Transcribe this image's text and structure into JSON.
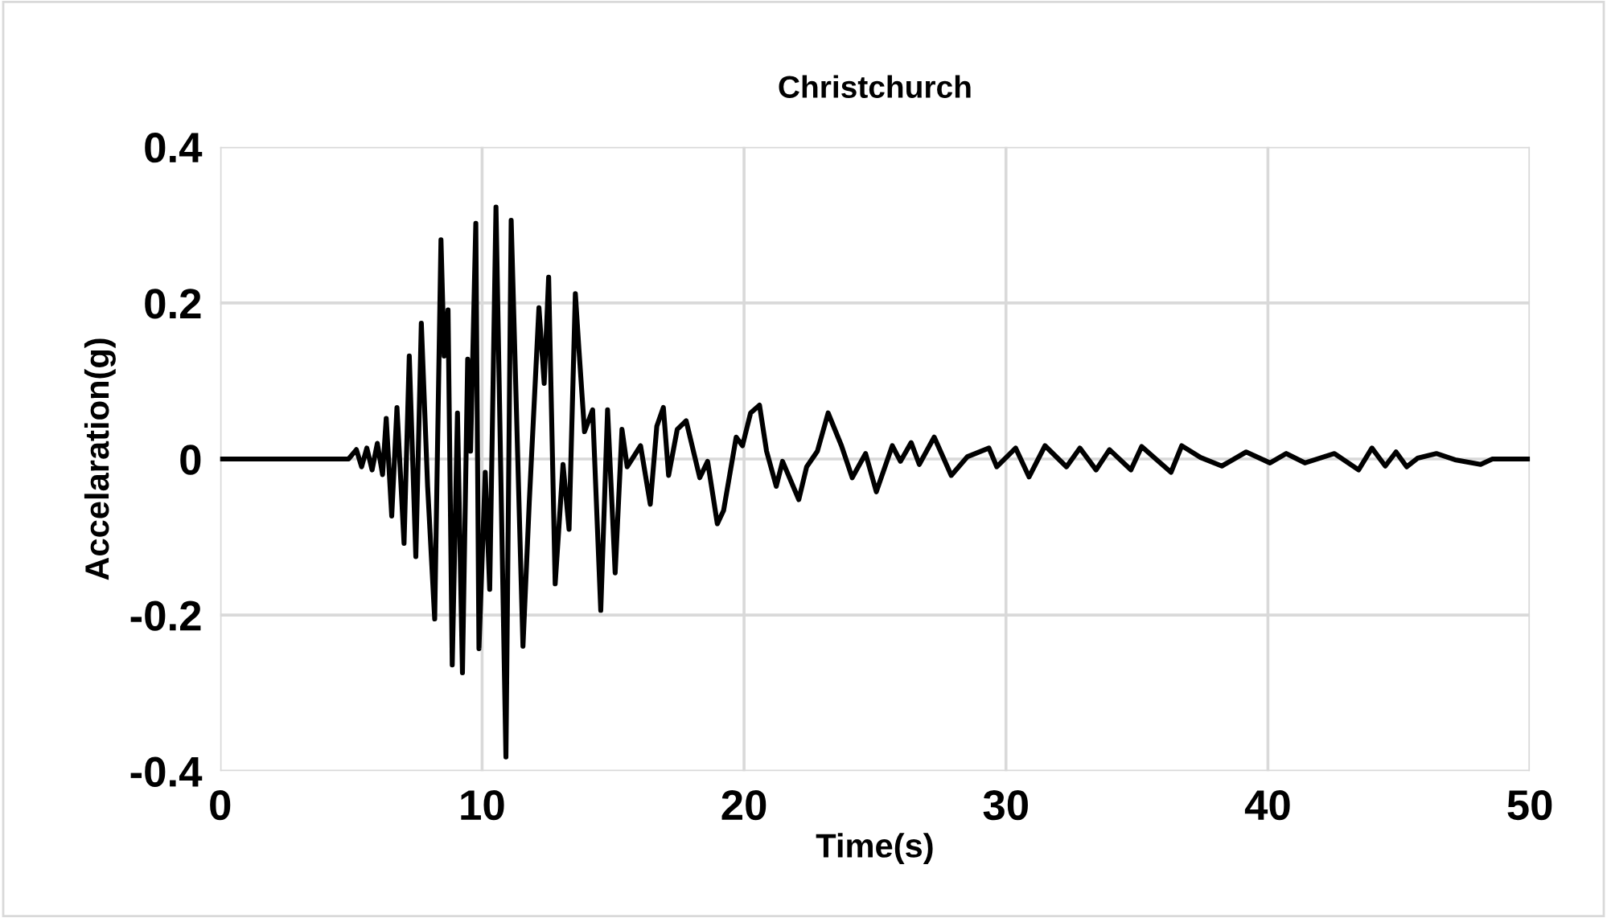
{
  "chart_data": {
    "type": "line",
    "title": "Christchurch",
    "xlabel": "Time(s)",
    "ylabel": "Accelaration(g)",
    "xlim": [
      0,
      50
    ],
    "ylim": [
      -0.4,
      0.4
    ],
    "xticks": [
      0,
      10,
      20,
      30,
      40,
      50
    ],
    "yticks": [
      -0.4,
      -0.2,
      0,
      0.2,
      0.4
    ],
    "grid": true,
    "marker": "none",
    "line_style": "solid",
    "series": [
      {
        "color": "#000000",
        "x": [
          0,
          4.9,
          5.2,
          5.4,
          5.6,
          5.8,
          6.0,
          6.2,
          6.34,
          6.55,
          6.75,
          7.02,
          7.22,
          7.47,
          7.68,
          7.92,
          8.19,
          8.43,
          8.55,
          8.7,
          8.86,
          9.06,
          9.25,
          9.45,
          9.56,
          9.76,
          9.88,
          10.12,
          10.29,
          10.53,
          10.91,
          11.11,
          11.56,
          11.8,
          12.17,
          12.37,
          12.54,
          12.79,
          13.09,
          13.32,
          13.56,
          13.7,
          13.91,
          14.22,
          14.53,
          14.79,
          15.08,
          15.34,
          15.54,
          16.05,
          16.42,
          16.67,
          16.92,
          17.12,
          17.45,
          17.79,
          18.31,
          18.61,
          18.98,
          19.22,
          19.7,
          19.94,
          20.25,
          20.59,
          20.86,
          21.23,
          21.47,
          22.09,
          22.39,
          22.8,
          23.21,
          23.72,
          24.13,
          24.64,
          25.05,
          25.66,
          25.97,
          26.38,
          26.69,
          27.26,
          27.91,
          28.53,
          29.35,
          29.65,
          30.37,
          30.88,
          31.49,
          32.31,
          32.82,
          33.44,
          33.95,
          34.77,
          35.18,
          35.79,
          36.3,
          36.71,
          37.43,
          38.24,
          39.17,
          40.08,
          40.7,
          41.41,
          42.54,
          43.46,
          43.97,
          44.48,
          44.89,
          45.3,
          45.71,
          46.43,
          47.14,
          48.12,
          48.57,
          50
        ],
        "values": [
          0,
          0,
          0.012,
          -0.01,
          0.014,
          -0.014,
          0.02,
          -0.02,
          0.052,
          -0.073,
          0.066,
          -0.108,
          0.132,
          -0.125,
          0.174,
          -0.035,
          -0.205,
          0.281,
          0.132,
          0.191,
          -0.264,
          0.059,
          -0.274,
          0.128,
          0.01,
          0.302,
          -0.243,
          -0.017,
          -0.167,
          0.323,
          -0.382,
          0.306,
          -0.24,
          -0.056,
          0.194,
          0.097,
          0.233,
          -0.16,
          -0.007,
          -0.09,
          0.212,
          0.139,
          0.035,
          0.063,
          -0.194,
          0.063,
          -0.146,
          0.038,
          -0.01,
          0.017,
          -0.058,
          0.042,
          0.066,
          -0.021,
          0.038,
          0.049,
          -0.024,
          -0.003,
          -0.083,
          -0.066,
          0.028,
          0.017,
          0.059,
          0.069,
          0.01,
          -0.035,
          -0.003,
          -0.052,
          -0.01,
          0.01,
          0.059,
          0.017,
          -0.024,
          0.007,
          -0.042,
          0.017,
          -0.003,
          0.021,
          -0.007,
          0.028,
          -0.021,
          0.003,
          0.014,
          -0.01,
          0.014,
          -0.023,
          0.017,
          -0.01,
          0.014,
          -0.014,
          0.012,
          -0.014,
          0.016,
          -0.002,
          -0.017,
          0.017,
          0.002,
          -0.009,
          0.009,
          -0.005,
          0.007,
          -0.005,
          0.007,
          -0.014,
          0.014,
          -0.009,
          0.009,
          -0.01,
          0.001,
          0.007,
          -0.001,
          -0.007,
          0,
          0
        ]
      }
    ]
  }
}
